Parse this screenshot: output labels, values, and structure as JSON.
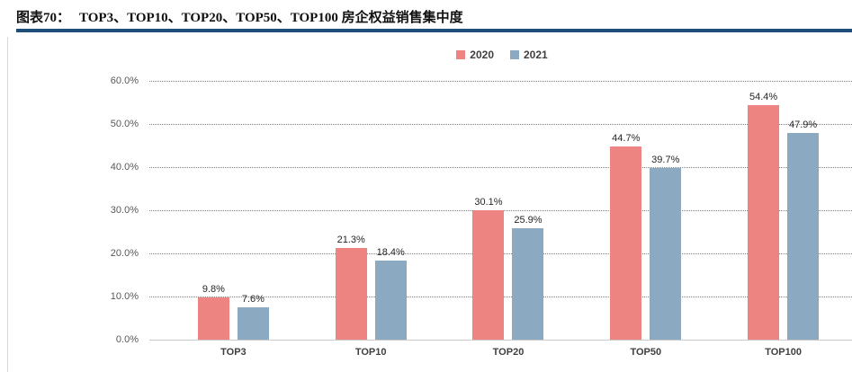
{
  "header": {
    "figure_label": "图表70：",
    "title": "TOP3、TOP10、TOP20、TOP50、TOP100 房企权益销售集中度",
    "rule_color": "#1f4e79"
  },
  "chart_data": {
    "type": "bar",
    "title": "TOP3、TOP10、TOP20、TOP50、TOP100 房企权益销售集中度",
    "categories": [
      "TOP3",
      "TOP10",
      "TOP20",
      "TOP50",
      "TOP100"
    ],
    "series": [
      {
        "name": "2020",
        "color": "#ee8481",
        "values": [
          9.8,
          21.3,
          30.1,
          44.7,
          54.4
        ],
        "labels": [
          "9.8%",
          "21.3%",
          "30.1%",
          "44.7%",
          "54.4%"
        ]
      },
      {
        "name": "2021",
        "color": "#8ca9c2",
        "values": [
          7.6,
          18.4,
          25.9,
          39.7,
          47.9
        ],
        "labels": [
          "7.6%",
          "18.4%",
          "25.9%",
          "39.7%",
          "47.9%"
        ]
      }
    ],
    "ylim": [
      0,
      60
    ],
    "ytick_step": 10,
    "ytick_labels": [
      "0.0%",
      "10.0%",
      "20.0%",
      "30.0%",
      "40.0%",
      "50.0%",
      "60.0%"
    ],
    "ylabel": "",
    "xlabel": "",
    "grid": "horizontal-dotted",
    "legend_position": "top-center"
  }
}
